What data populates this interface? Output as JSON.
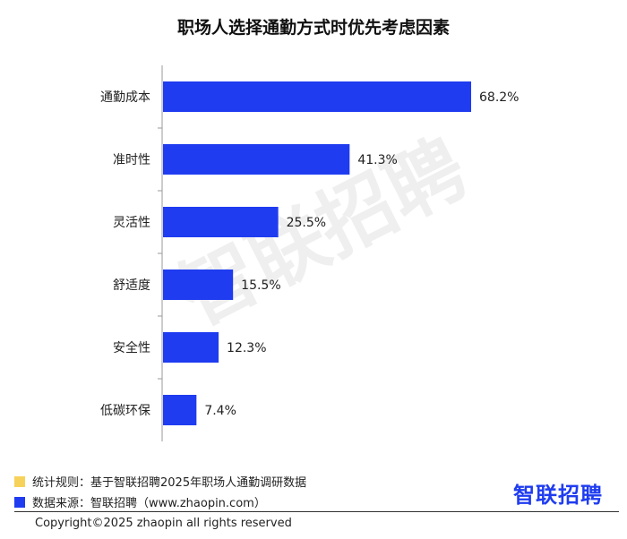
{
  "chart_data": {
    "type": "bar",
    "orientation": "horizontal",
    "title": "职场人选择通勤方式时优先考虑因素",
    "categories": [
      "通勤成本",
      "准时性",
      "灵活性",
      "舒适度",
      "安全性",
      "低碳环保"
    ],
    "values": [
      68.2,
      41.3,
      25.5,
      15.5,
      12.3,
      7.4
    ],
    "value_labels": [
      "68.2%",
      "41.3%",
      "25.5%",
      "15.5%",
      "12.3%",
      "7.4%"
    ],
    "xlim": [
      0,
      68.2
    ],
    "bar_color": "#1f3cf0",
    "grid": false,
    "legend": "none"
  },
  "footnotes": {
    "rule": {
      "label": "统计规则：基于智联招聘2025年职场人通勤调研数据",
      "color": "#f7d25a"
    },
    "source": {
      "label": "数据来源：智联招聘（www.zhaopin.com）",
      "color": "#1f3cf0"
    }
  },
  "brand": {
    "logo_text": "智联招聘",
    "watermark_text": "智联招聘"
  },
  "copyright": "Copyright©2025 zhaopin all rights reserved"
}
